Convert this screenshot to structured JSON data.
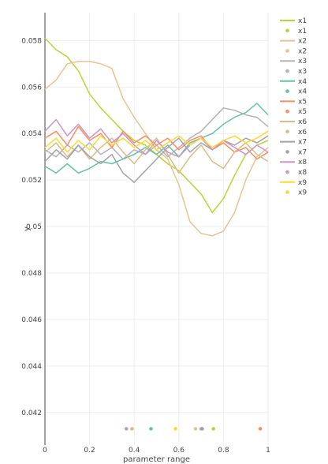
{
  "chart_data": {
    "type": "line",
    "title": "",
    "xlabel": "parameter range",
    "ylabel": "y",
    "xlim": [
      0,
      1
    ],
    "ylim": [
      0.0406,
      0.0592
    ],
    "grid": true,
    "legend_position": "right",
    "x_ticks": [
      {
        "v": 0,
        "label": "0"
      },
      {
        "v": 0.2,
        "label": "0.2"
      },
      {
        "v": 0.4,
        "label": "0.4"
      },
      {
        "v": 0.6,
        "label": "0.6"
      },
      {
        "v": 0.8,
        "label": "0.8"
      },
      {
        "v": 1,
        "label": "1"
      }
    ],
    "y_ticks": [
      {
        "v": 0.042,
        "label": "0.042"
      },
      {
        "v": 0.044,
        "label": "0.044"
      },
      {
        "v": 0.046,
        "label": "0.046"
      },
      {
        "v": 0.048,
        "label": "0.048"
      },
      {
        "v": 0.05,
        "label": "0.05"
      },
      {
        "v": 0.052,
        "label": "0.052"
      },
      {
        "v": 0.054,
        "label": "0.054"
      },
      {
        "v": 0.056,
        "label": "0.056"
      },
      {
        "v": 0.058,
        "label": "0.058"
      }
    ],
    "series": [
      {
        "name": "x1",
        "color": "#b8d43a",
        "marker_x": 0.755,
        "marker_y": 0.0413,
        "x": [
          0,
          0.05,
          0.1,
          0.15,
          0.2,
          0.25,
          0.3,
          0.35,
          0.4,
          0.45,
          0.5,
          0.55,
          0.6,
          0.65,
          0.7,
          0.75,
          0.8,
          0.85,
          0.9,
          0.95,
          1.0
        ],
        "values": [
          0.0581,
          0.0576,
          0.0573,
          0.0567,
          0.0557,
          0.0551,
          0.0546,
          0.0541,
          0.0537,
          0.0535,
          0.0531,
          0.0527,
          0.0524,
          0.0519,
          0.0514,
          0.0506,
          0.0512,
          0.0522,
          0.0531,
          0.0535,
          0.0537
        ]
      },
      {
        "name": "x2",
        "color": "#e5c494",
        "marker_x": 0.675,
        "marker_y": 0.0413,
        "x": [
          0,
          0.05,
          0.1,
          0.15,
          0.2,
          0.25,
          0.3,
          0.35,
          0.4,
          0.45,
          0.5,
          0.55,
          0.6,
          0.65,
          0.7,
          0.75,
          0.8,
          0.85,
          0.9,
          0.95,
          1.0
        ],
        "values": [
          0.0559,
          0.0563,
          0.057,
          0.0571,
          0.0571,
          0.057,
          0.0568,
          0.0555,
          0.0547,
          0.054,
          0.0533,
          0.0529,
          0.0518,
          0.0502,
          0.0497,
          0.0496,
          0.0498,
          0.0506,
          0.052,
          0.053,
          0.0534
        ]
      },
      {
        "name": "x3",
        "color": "#b3b3b3",
        "marker_x": 0.7,
        "marker_y": 0.0413,
        "x": [
          0,
          0.05,
          0.1,
          0.15,
          0.2,
          0.25,
          0.3,
          0.35,
          0.4,
          0.45,
          0.5,
          0.55,
          0.6,
          0.65,
          0.7,
          0.75,
          0.8,
          0.85,
          0.9,
          0.95,
          1.0
        ],
        "values": [
          0.0533,
          0.053,
          0.0535,
          0.0532,
          0.0536,
          0.0531,
          0.0534,
          0.0529,
          0.0533,
          0.0531,
          0.0535,
          0.053,
          0.0534,
          0.0538,
          0.0541,
          0.0546,
          0.0551,
          0.055,
          0.0548,
          0.0547,
          0.0543
        ]
      },
      {
        "name": "x4",
        "color": "#66c2a5",
        "marker_x": 0.475,
        "marker_y": 0.0413,
        "x": [
          0,
          0.05,
          0.1,
          0.15,
          0.2,
          0.25,
          0.3,
          0.35,
          0.4,
          0.45,
          0.5,
          0.55,
          0.6,
          0.65,
          0.7,
          0.75,
          0.8,
          0.85,
          0.9,
          0.95,
          1.0
        ],
        "values": [
          0.0526,
          0.0523,
          0.0527,
          0.0523,
          0.0525,
          0.0528,
          0.0527,
          0.0529,
          0.0531,
          0.0534,
          0.0531,
          0.0535,
          0.053,
          0.0536,
          0.0538,
          0.054,
          0.0544,
          0.0547,
          0.0549,
          0.0553,
          0.0548
        ]
      },
      {
        "name": "x5",
        "color": "#fc8d62",
        "marker_x": 0.965,
        "marker_y": 0.0413,
        "x": [
          0,
          0.05,
          0.1,
          0.15,
          0.2,
          0.25,
          0.3,
          0.35,
          0.4,
          0.45,
          0.5,
          0.55,
          0.6,
          0.65,
          0.7,
          0.75,
          0.8,
          0.85,
          0.9,
          0.95,
          1.0
        ],
        "values": [
          0.0538,
          0.0541,
          0.0535,
          0.0543,
          0.0537,
          0.054,
          0.0534,
          0.0541,
          0.0536,
          0.0539,
          0.0535,
          0.0538,
          0.0533,
          0.0537,
          0.0539,
          0.0533,
          0.0536,
          0.0532,
          0.0534,
          0.0529,
          0.0532
        ]
      },
      {
        "name": "x6",
        "color": "#d9bc89",
        "marker_x": 0.39,
        "marker_y": 0.0413,
        "x": [
          0,
          0.05,
          0.1,
          0.15,
          0.2,
          0.25,
          0.3,
          0.35,
          0.4,
          0.45,
          0.5,
          0.55,
          0.6,
          0.65,
          0.7,
          0.75,
          0.8,
          0.85,
          0.9,
          0.95,
          1.0
        ],
        "values": [
          0.0532,
          0.0536,
          0.053,
          0.0535,
          0.0529,
          0.0534,
          0.0538,
          0.0532,
          0.0527,
          0.0533,
          0.0538,
          0.0531,
          0.0523,
          0.053,
          0.0535,
          0.0528,
          0.0525,
          0.0532,
          0.0536,
          0.0531,
          0.0528
        ]
      },
      {
        "name": "x7",
        "color": "#a3a1a9",
        "marker_x": 0.705,
        "marker_y": 0.0413,
        "x": [
          0,
          0.05,
          0.1,
          0.15,
          0.2,
          0.25,
          0.3,
          0.35,
          0.4,
          0.45,
          0.5,
          0.55,
          0.6,
          0.65,
          0.7,
          0.75,
          0.8,
          0.85,
          0.9,
          0.95,
          1.0
        ],
        "values": [
          0.0528,
          0.0533,
          0.0529,
          0.0535,
          0.053,
          0.0527,
          0.0531,
          0.0523,
          0.0519,
          0.0524,
          0.0529,
          0.0534,
          0.0538,
          0.0532,
          0.0536,
          0.0533,
          0.0537,
          0.0535,
          0.0538,
          0.0536,
          0.0539
        ]
      },
      {
        "name": "x8",
        "color": "#c995c8",
        "marker_x": 0.365,
        "marker_y": 0.0413,
        "x": [
          0,
          0.05,
          0.1,
          0.15,
          0.2,
          0.25,
          0.3,
          0.35,
          0.4,
          0.45,
          0.5,
          0.55,
          0.6,
          0.65,
          0.7,
          0.75,
          0.8,
          0.85,
          0.9,
          0.95,
          1.0
        ],
        "values": [
          0.0541,
          0.0546,
          0.0539,
          0.0544,
          0.0538,
          0.0542,
          0.0536,
          0.054,
          0.0535,
          0.0531,
          0.0537,
          0.0532,
          0.053,
          0.0535,
          0.0538,
          0.0533,
          0.0537,
          0.0534,
          0.0531,
          0.0535,
          0.0532
        ]
      },
      {
        "name": "x9",
        "color": "#ffd92f",
        "marker_x": 0.585,
        "marker_y": 0.0413,
        "x": [
          0,
          0.05,
          0.1,
          0.15,
          0.2,
          0.25,
          0.3,
          0.35,
          0.4,
          0.45,
          0.5,
          0.55,
          0.6,
          0.65,
          0.7,
          0.75,
          0.8,
          0.85,
          0.9,
          0.95,
          1.0
        ],
        "values": [
          0.0534,
          0.0538,
          0.0532,
          0.0537,
          0.0533,
          0.0539,
          0.0535,
          0.0538,
          0.0534,
          0.0537,
          0.0533,
          0.0536,
          0.0539,
          0.0535,
          0.0538,
          0.0534,
          0.0537,
          0.0539,
          0.0536,
          0.0538,
          0.0541
        ]
      }
    ]
  }
}
